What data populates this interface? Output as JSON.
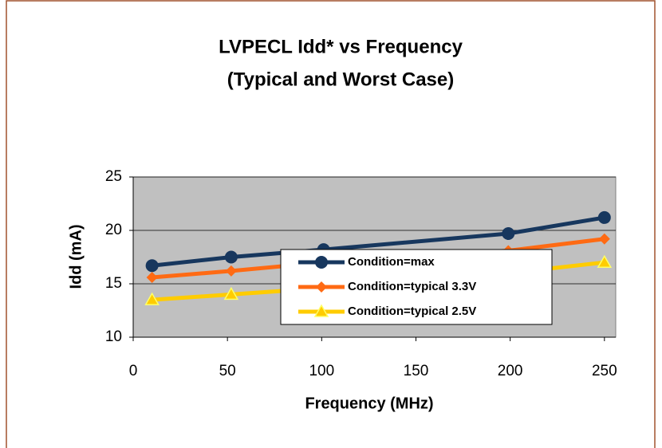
{
  "chart_data": {
    "type": "line",
    "title": "LVPECL Idd* vs Frequency",
    "subtitle": "(Typical and Worst Case)",
    "x_label": "Frequency (MHz)",
    "y_label": "Idd (mA)",
    "x": [
      10,
      52,
      101,
      199,
      250
    ],
    "series": [
      {
        "name": "Condition=max",
        "color": "#17375e",
        "marker": "circle",
        "values": [
          16.7,
          17.5,
          18.2,
          19.7,
          21.2
        ]
      },
      {
        "name": "Condition=typical 3.3V",
        "color": "#ff6a13",
        "marker": "diamond",
        "values": [
          15.6,
          16.2,
          17.0,
          18.1,
          19.2
        ]
      },
      {
        "name": "Condition=typical 2.5V",
        "color": "#ffcc00",
        "marker": "triangle",
        "values": [
          13.5,
          14.0,
          14.6,
          16.0,
          17.0
        ]
      }
    ],
    "xlim": [
      0,
      256
    ],
    "xticks": [
      0,
      50,
      100,
      150,
      200,
      250
    ],
    "ylim": [
      10,
      25
    ],
    "yticks": [
      10,
      15,
      20,
      25
    ],
    "grid": true,
    "legend": "center"
  }
}
